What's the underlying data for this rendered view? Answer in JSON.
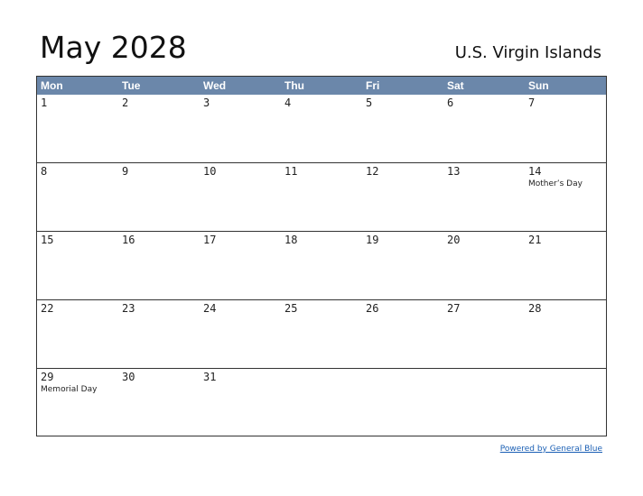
{
  "title": "May 2028",
  "region": "U.S. Virgin Islands",
  "weekdays": [
    "Mon",
    "Tue",
    "Wed",
    "Thu",
    "Fri",
    "Sat",
    "Sun"
  ],
  "weeks": [
    [
      {
        "day": "1"
      },
      {
        "day": "2"
      },
      {
        "day": "3"
      },
      {
        "day": "4"
      },
      {
        "day": "5"
      },
      {
        "day": "6"
      },
      {
        "day": "7"
      }
    ],
    [
      {
        "day": "8"
      },
      {
        "day": "9"
      },
      {
        "day": "10"
      },
      {
        "day": "11"
      },
      {
        "day": "12"
      },
      {
        "day": "13"
      },
      {
        "day": "14",
        "holiday": "Mother’s Day"
      }
    ],
    [
      {
        "day": "15"
      },
      {
        "day": "16"
      },
      {
        "day": "17"
      },
      {
        "day": "18"
      },
      {
        "day": "19"
      },
      {
        "day": "20"
      },
      {
        "day": "21"
      }
    ],
    [
      {
        "day": "22"
      },
      {
        "day": "23"
      },
      {
        "day": "24"
      },
      {
        "day": "25"
      },
      {
        "day": "26"
      },
      {
        "day": "27"
      },
      {
        "day": "28"
      }
    ],
    [
      {
        "day": "29",
        "holiday": "Memorial Day"
      },
      {
        "day": "30"
      },
      {
        "day": "31"
      },
      {
        "day": ""
      },
      {
        "day": ""
      },
      {
        "day": ""
      },
      {
        "day": ""
      }
    ]
  ],
  "footer": {
    "link_text": "Powered by General Blue"
  },
  "colors": {
    "header_bg": "#6b87aa",
    "link": "#1a5fb4"
  }
}
